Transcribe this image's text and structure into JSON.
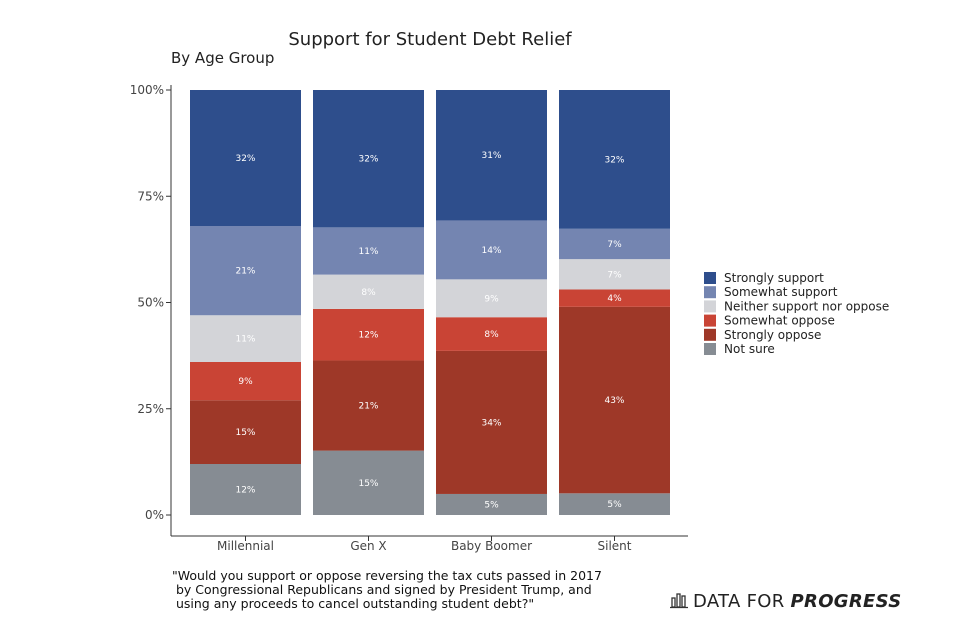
{
  "chart_data": {
    "type": "bar",
    "stacked": true,
    "title": "Support for Student Debt Relief",
    "subtitle": "By Age Group",
    "categories": [
      "Millennial",
      "Gen X",
      "Baby Boomer",
      "Silent"
    ],
    "y_ticks": [
      "0%",
      "25%",
      "50%",
      "75%",
      "100%"
    ],
    "ylim": [
      0,
      100
    ],
    "legend_position": "right",
    "series": [
      {
        "name": "Not sure",
        "color": "#868c93",
        "values": [
          12,
          15,
          5,
          5
        ],
        "labels": [
          "12%",
          "15%",
          "5%",
          "5%"
        ]
      },
      {
        "name": "Strongly oppose",
        "color": "#9e3828",
        "values": [
          15,
          21,
          34,
          43
        ],
        "labels": [
          "15%",
          "21%",
          "34%",
          "43%"
        ]
      },
      {
        "name": "Somewhat oppose",
        "color": "#c94435",
        "values": [
          9,
          12,
          8,
          4
        ],
        "labels": [
          "9%",
          "12%",
          "8%",
          "4%"
        ]
      },
      {
        "name": "Neither support nor oppose",
        "color": "#d3d4d8",
        "values": [
          11,
          8,
          9,
          7
        ],
        "labels": [
          "11%",
          "8%",
          "9%",
          "7%"
        ]
      },
      {
        "name": "Somewhat support",
        "color": "#7485b1",
        "values": [
          21,
          11,
          14,
          7
        ],
        "labels": [
          "21%",
          "11%",
          "14%",
          "7%"
        ]
      },
      {
        "name": "Strongly support",
        "color": "#2e4e8c",
        "values": [
          32,
          32,
          31,
          32
        ],
        "labels": [
          "32%",
          "32%",
          "31%",
          "32%"
        ]
      }
    ],
    "legend_order": [
      "Strongly support",
      "Somewhat support",
      "Neither support nor oppose",
      "Somewhat oppose",
      "Strongly oppose",
      "Not sure"
    ]
  },
  "caption": {
    "lines": [
      "\"Would you support or oppose reversing the tax cuts passed in 2017",
      " by Congressional Republicans and signed by President Trump, and",
      " using any proceeds to cancel outstanding student debt?\""
    ]
  },
  "brand": {
    "prefix": "DATA FOR ",
    "bold": "PROGRESS",
    "icon": "bar-chart-icon"
  }
}
